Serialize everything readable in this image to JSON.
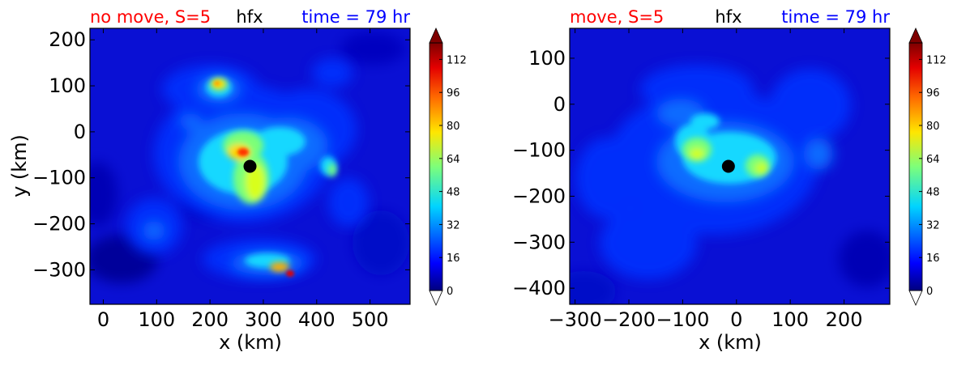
{
  "chart_data": [
    {
      "type": "heatmap",
      "title_left": "no move, S=5",
      "title_center": "hfx",
      "title_right": "time = 79 hr",
      "xlabel": "x (km)",
      "ylabel": "y (km)",
      "xlim": [
        -25,
        575
      ],
      "ylim": [
        -375,
        225
      ],
      "xticks": [
        "0",
        "100",
        "200",
        "300",
        "400",
        "500"
      ],
      "xtick_values": [
        0,
        100,
        200,
        300,
        400,
        500
      ],
      "yticks": [
        "200",
        "100",
        "0",
        "−100",
        "−200",
        "−300"
      ],
      "ytick_values": [
        200,
        100,
        0,
        -100,
        -200,
        -300
      ],
      "storm_center": {
        "x": 275,
        "y": -75
      },
      "colorbar": {
        "min": 0,
        "max": 120,
        "extend": "both",
        "ticks": [
          "0",
          "16",
          "32",
          "48",
          "64",
          "80",
          "96",
          "112"
        ],
        "tick_values": [
          0,
          16,
          32,
          48,
          64,
          80,
          96,
          112
        ]
      }
    },
    {
      "type": "heatmap",
      "title_left": "move, S=5",
      "title_center": "hfx",
      "title_right": "time = 79 hr",
      "xlabel": "x (km)",
      "ylabel": "",
      "xlim": [
        -310,
        285
      ],
      "ylim": [
        -435,
        165
      ],
      "xticks": [
        "−300",
        "−200",
        "−100",
        "0",
        "100",
        "200"
      ],
      "xtick_values": [
        -300,
        -200,
        -100,
        0,
        100,
        200
      ],
      "yticks": [
        "100",
        "0",
        "−100",
        "−200",
        "−300",
        "−400"
      ],
      "ytick_values": [
        100,
        0,
        -100,
        -200,
        -300,
        -400
      ],
      "storm_center": {
        "x": -15,
        "y": -135
      },
      "colorbar": {
        "min": 0,
        "max": 120,
        "extend": "both",
        "ticks": [
          "0",
          "16",
          "32",
          "48",
          "64",
          "80",
          "96",
          "112"
        ],
        "tick_values": [
          0,
          16,
          32,
          48,
          64,
          80,
          96,
          112
        ]
      }
    }
  ],
  "colors": {
    "title_left": "#ff0000",
    "title_center": "#000000",
    "title_right": "#0000ff",
    "background_field": "#0a10d4"
  }
}
